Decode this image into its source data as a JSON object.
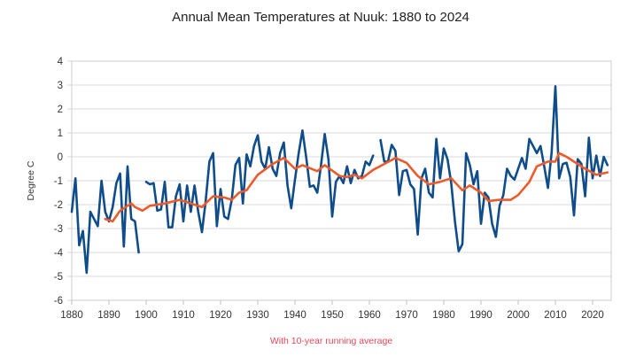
{
  "chart_data": {
    "type": "line",
    "title": "Annual Mean Temperatures at Nuuk: 1880 to 2024",
    "xlabel": "",
    "ylabel": "Degree C",
    "caption": "With 10-year running average",
    "xlim": [
      1880,
      2025
    ],
    "ylim": [
      -6,
      4
    ],
    "grid": true,
    "legend": "none",
    "x_ticks": [
      1880,
      1890,
      1900,
      1910,
      1920,
      1930,
      1940,
      1950,
      1960,
      1970,
      1980,
      1990,
      2000,
      2010,
      2020
    ],
    "y_ticks": [
      -6,
      -5,
      -4,
      -3,
      -2,
      -1,
      0,
      1,
      2,
      3,
      4
    ],
    "colors": {
      "annual": "#0f4c8a",
      "running_avg": "#ee5b2a",
      "caption": "#e8485a",
      "grid": "#d9d9d9"
    },
    "series": [
      {
        "name": "Annual mean",
        "x": [
          1880,
          1881,
          1882,
          1883,
          1884,
          1885,
          1886,
          1887,
          1888,
          1889,
          1890,
          1891,
          1892,
          1893,
          1894,
          1895,
          1896,
          1897,
          1898,
          1899,
          1900,
          1901,
          1902,
          1903,
          1904,
          1905,
          1906,
          1907,
          1908,
          1909,
          1910,
          1911,
          1912,
          1913,
          1914,
          1915,
          1916,
          1917,
          1918,
          1919,
          1920,
          1921,
          1922,
          1923,
          1924,
          1925,
          1926,
          1927,
          1928,
          1929,
          1930,
          1931,
          1932,
          1933,
          1934,
          1935,
          1936,
          1937,
          1938,
          1939,
          1940,
          1941,
          1942,
          1943,
          1944,
          1945,
          1946,
          1947,
          1948,
          1949,
          1950,
          1951,
          1952,
          1953,
          1954,
          1955,
          1956,
          1957,
          1958,
          1959,
          1960,
          1961,
          1962,
          1963,
          1964,
          1965,
          1966,
          1967,
          1968,
          1969,
          1970,
          1971,
          1972,
          1973,
          1974,
          1975,
          1976,
          1977,
          1978,
          1979,
          1980,
          1981,
          1982,
          1983,
          1984,
          1985,
          1986,
          1987,
          1988,
          1989,
          1990,
          1991,
          1992,
          1993,
          1994,
          1995,
          1996,
          1997,
          1998,
          1999,
          2000,
          2001,
          2002,
          2003,
          2004,
          2005,
          2006,
          2007,
          2008,
          2009,
          2010,
          2011,
          2012,
          2013,
          2014,
          2015,
          2016,
          2017,
          2018,
          2019,
          2020,
          2021,
          2022,
          2023,
          2024
        ],
        "values": [
          -2.3,
          -0.9,
          -3.7,
          -3.1,
          -4.85,
          -2.3,
          -2.6,
          -2.9,
          -1.0,
          -2.3,
          -2.7,
          -2.1,
          -1.1,
          -0.7,
          -3.75,
          -0.4,
          -2.6,
          -2.7,
          -4.0,
          null,
          -1.05,
          -1.15,
          -1.1,
          -2.25,
          -2.2,
          -1.05,
          -2.95,
          -2.95,
          -1.65,
          -1.15,
          -2.7,
          -1.2,
          -2.3,
          -1.2,
          -2.3,
          -3.15,
          -1.85,
          -0.2,
          0.15,
          -2.9,
          -1.35,
          -2.5,
          -2.6,
          -1.8,
          -0.35,
          -0.05,
          -1.95,
          0.1,
          -0.4,
          0.45,
          0.9,
          -0.2,
          -0.5,
          0.4,
          -0.5,
          -0.8,
          0.15,
          0.6,
          -1.2,
          -2.15,
          -0.95,
          0.15,
          1.1,
          0.0,
          -1.25,
          -1.2,
          -1.5,
          -0.35,
          0.95,
          -0.1,
          -2.5,
          -1.05,
          -0.8,
          -1.1,
          -0.4,
          -1.1,
          -0.55,
          -0.9,
          -0.8,
          -0.2,
          -0.35,
          0.05,
          null,
          0.7,
          -0.2,
          -0.2,
          0.5,
          0.25,
          -1.6,
          -0.6,
          -0.55,
          -1.15,
          -1.35,
          -3.25,
          -0.9,
          -0.5,
          -1.5,
          -1.7,
          0.75,
          -0.9,
          0.35,
          -0.1,
          -1.1,
          -2.7,
          -3.95,
          -3.65,
          0.15,
          -0.35,
          -1.15,
          -0.6,
          -2.8,
          -1.5,
          -1.7,
          -2.8,
          -3.35,
          -2.05,
          -1.6,
          -0.5,
          -0.8,
          -0.95,
          -0.5,
          -0.05,
          -0.5,
          0.75,
          0.45,
          0.15,
          0.45,
          -0.4,
          -1.3,
          0.2,
          2.95,
          -0.9,
          -0.3,
          -0.25,
          -0.85,
          -2.45,
          -0.1,
          -0.3,
          -1.65,
          0.8,
          -0.9,
          0.05,
          -0.8,
          0.0,
          -0.35
        ]
      },
      {
        "name": "10-year running average",
        "x": [
          1889,
          1891,
          1893,
          1896,
          1897,
          1899,
          1901,
          1905,
          1909,
          1911,
          1915,
          1918,
          1921,
          1923,
          1925,
          1927,
          1930,
          1934,
          1937,
          1940,
          1942,
          1946,
          1948,
          1952,
          1954,
          1956,
          1958,
          1961,
          1964,
          1967,
          1970,
          1973,
          1976,
          1979,
          1982,
          1985,
          1987,
          1990,
          1992,
          1995,
          1998,
          2000,
          2003,
          2005,
          2008,
          2010,
          2011,
          2013,
          2016,
          2018,
          2021,
          2024
        ],
        "values": [
          -2.6,
          -2.7,
          -2.25,
          -1.95,
          -2.1,
          -2.25,
          -2.05,
          -1.95,
          -1.8,
          -1.9,
          -2.1,
          -1.65,
          -1.7,
          -1.8,
          -1.5,
          -1.4,
          -0.75,
          -0.3,
          -0.05,
          -0.5,
          -0.35,
          -0.6,
          -0.35,
          -0.8,
          -0.85,
          -0.75,
          -0.9,
          -0.55,
          -0.3,
          -0.05,
          -0.25,
          -0.8,
          -1.15,
          -1.05,
          -0.9,
          -1.4,
          -1.2,
          -1.5,
          -1.85,
          -1.8,
          -1.8,
          -1.6,
          -1.05,
          -0.4,
          -0.2,
          -0.2,
          0.15,
          0.0,
          -0.3,
          -0.5,
          -0.75,
          -0.65
        ]
      }
    ]
  }
}
